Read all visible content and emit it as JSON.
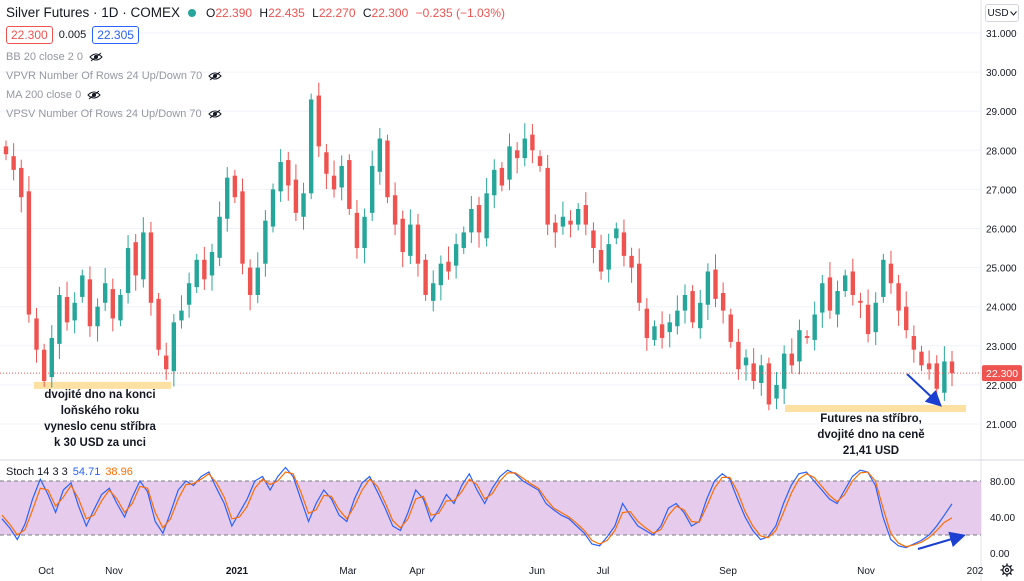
{
  "header": {
    "symbol_title": "Silver Futures · 1D · COMEX",
    "open_label": "O",
    "open": "22.390",
    "high_label": "H",
    "high": "22.435",
    "low_label": "L",
    "low": "22.270",
    "close_label": "C",
    "close": "22.300",
    "change": "−0.235 (−1.03%)",
    "status_color": "#26a69a"
  },
  "trade": {
    "sell": "22.300",
    "spread": "0.005",
    "buy": "22.305"
  },
  "indicators": [
    {
      "label": "BB 20 close 2 0",
      "icon": "eye-icon"
    },
    {
      "label": "VPVR Number Of Rows 24 Up/Down 70",
      "icon": "eye-icon"
    },
    {
      "label": "MA 200 close 0",
      "icon": "eye-icon"
    },
    {
      "label": "VPSV Number Of Rows 24 Up/Down 70",
      "icon": "eye-icon"
    }
  ],
  "currency": {
    "label": "USD",
    "icon": "chevron-down-icon"
  },
  "last_price_label": "22.300",
  "stoch": {
    "label": "Stoch 14 3 3",
    "k": "54.71",
    "d": "38.96"
  },
  "annotations": {
    "left": [
      "dvojité dno na konci",
      "loňského roku",
      "vyneslo cenu stříbra",
      "k 30 USD za unci"
    ],
    "right": [
      "Futures na stříbro,",
      "dvojité dno na ceně",
      "21,41 USD"
    ]
  },
  "colors": {
    "up": "#26a69a",
    "down": "#ef5350",
    "k_line": "#2962ff",
    "d_line": "#ff6d00",
    "stoch_band": "#e1bee7",
    "highlight": "#ffe0a3",
    "arrow": "#1a3fd1"
  },
  "chart_data": [
    {
      "type": "candlestick",
      "title": "Silver Futures · 1D · COMEX",
      "y_axis_side": "right",
      "ylim": [
        20.4,
        31.3
      ],
      "y_ticks": [
        "31.000",
        "30.000",
        "29.000",
        "28.000",
        "27.000",
        "26.000",
        "25.000",
        "24.000",
        "23.000",
        "22.000",
        "21.000"
      ],
      "x_ticks": [
        "Oct",
        "Nov",
        "2021",
        "Mar",
        "Apr",
        "Jun",
        "Jul",
        "Sep",
        "Nov",
        "202"
      ],
      "last_price": 22.3,
      "support_levels": [
        {
          "value": 22.0,
          "note": "double bottom end of last year"
        },
        {
          "value": 21.41,
          "note": "double bottom"
        }
      ],
      "close_path": [
        27.9,
        27.5,
        26.8,
        23.8,
        22.9,
        22.1,
        23.2,
        24.3,
        23.6,
        24.1,
        24.8,
        23.5,
        24.0,
        24.6,
        23.7,
        24.3,
        25.5,
        24.8,
        25.9,
        24.1,
        22.9,
        22.4,
        23.6,
        23.9,
        24.6,
        25.2,
        24.7,
        25.4,
        26.3,
        27.3,
        26.8,
        25.1,
        24.3,
        25.0,
        26.2,
        27.0,
        27.7,
        27.1,
        26.4,
        26.9,
        29.3,
        28.1,
        27.4,
        27.0,
        27.6,
        26.5,
        25.5,
        26.3,
        27.6,
        28.3,
        26.8,
        26.1,
        25.4,
        26.1,
        25.1,
        24.3,
        24.6,
        25.1,
        24.9,
        25.6,
        25.9,
        26.5,
        25.9,
        26.9,
        27.5,
        27.1,
        28.1,
        27.8,
        28.3,
        28.0,
        27.6,
        26.1,
        25.9,
        26.3,
        26.1,
        26.5,
        26.1,
        25.5,
        24.9,
        25.6,
        26.0,
        25.3,
        25.0,
        24.1,
        23.2,
        23.5,
        23.2,
        23.6,
        23.9,
        24.3,
        23.6,
        24.1,
        24.9,
        24.2,
        23.9,
        23.1,
        22.4,
        22.7,
        22.1,
        22.5,
        21.5,
        22.0,
        22.8,
        22.5,
        23.4,
        23.2,
        23.8,
        24.6,
        23.9,
        24.4,
        24.8,
        24.3,
        24.1,
        23.3,
        24.1,
        25.2,
        24.6,
        23.9,
        23.4,
        22.9,
        22.5,
        22.4,
        21.9,
        22.6,
        22.3
      ]
    },
    {
      "type": "line",
      "title": "Stoch 14 3 3",
      "ylim": [
        0,
        100
      ],
      "y_ticks": [
        "80.00",
        "40.00",
        "0.00"
      ],
      "bands": [
        20,
        80
      ],
      "series": [
        {
          "name": "%K",
          "last": 54.71,
          "values": [
            38,
            28,
            15,
            32,
            60,
            82,
            65,
            45,
            70,
            78,
            52,
            30,
            48,
            65,
            72,
            55,
            40,
            62,
            80,
            68,
            35,
            22,
            45,
            70,
            80,
            75,
            85,
            90,
            72,
            55,
            30,
            45,
            60,
            80,
            85,
            70,
            85,
            95,
            85,
            60,
            35,
            55,
            70,
            60,
            42,
            35,
            60,
            78,
            85,
            68,
            50,
            30,
            25,
            45,
            70,
            60,
            35,
            48,
            65,
            55,
            75,
            88,
            70,
            55,
            72,
            85,
            92,
            88,
            80,
            75,
            70,
            55,
            48,
            42,
            38,
            30,
            22,
            10,
            8,
            18,
            30,
            55,
            42,
            30,
            25,
            20,
            30,
            50,
            55,
            45,
            30,
            35,
            60,
            80,
            88,
            82,
            60,
            40,
            25,
            15,
            18,
            30,
            55,
            75,
            88,
            90,
            80,
            70,
            60,
            55,
            70,
            85,
            92,
            90,
            75,
            40,
            15,
            8,
            6,
            10,
            14,
            20,
            30,
            42,
            54.71
          ]
        },
        {
          "name": "%D",
          "last": 38.96,
          "values": [
            42,
            32,
            20,
            26,
            48,
            72,
            70,
            52,
            62,
            75,
            60,
            38,
            42,
            58,
            70,
            60,
            45,
            55,
            74,
            72,
            45,
            28,
            38,
            60,
            76,
            77,
            82,
            88,
            78,
            62,
            38,
            40,
            52,
            72,
            82,
            76,
            80,
            90,
            88,
            68,
            44,
            48,
            64,
            63,
            48,
            38,
            52,
            70,
            82,
            74,
            56,
            36,
            28,
            38,
            60,
            63,
            42,
            44,
            58,
            58,
            68,
            82,
            76,
            60,
            66,
            80,
            89,
            89,
            83,
            77,
            72,
            60,
            50,
            45,
            40,
            33,
            25,
            14,
            10,
            14,
            25,
            45,
            46,
            35,
            28,
            22,
            26,
            42,
            52,
            48,
            35,
            34,
            52,
            72,
            84,
            84,
            68,
            46,
            30,
            19,
            17,
            25,
            45,
            66,
            82,
            88,
            84,
            74,
            64,
            57,
            65,
            80,
            89,
            90,
            80,
            50,
            22,
            11,
            7,
            9,
            12,
            17,
            25,
            34,
            38.96
          ]
        }
      ]
    }
  ]
}
